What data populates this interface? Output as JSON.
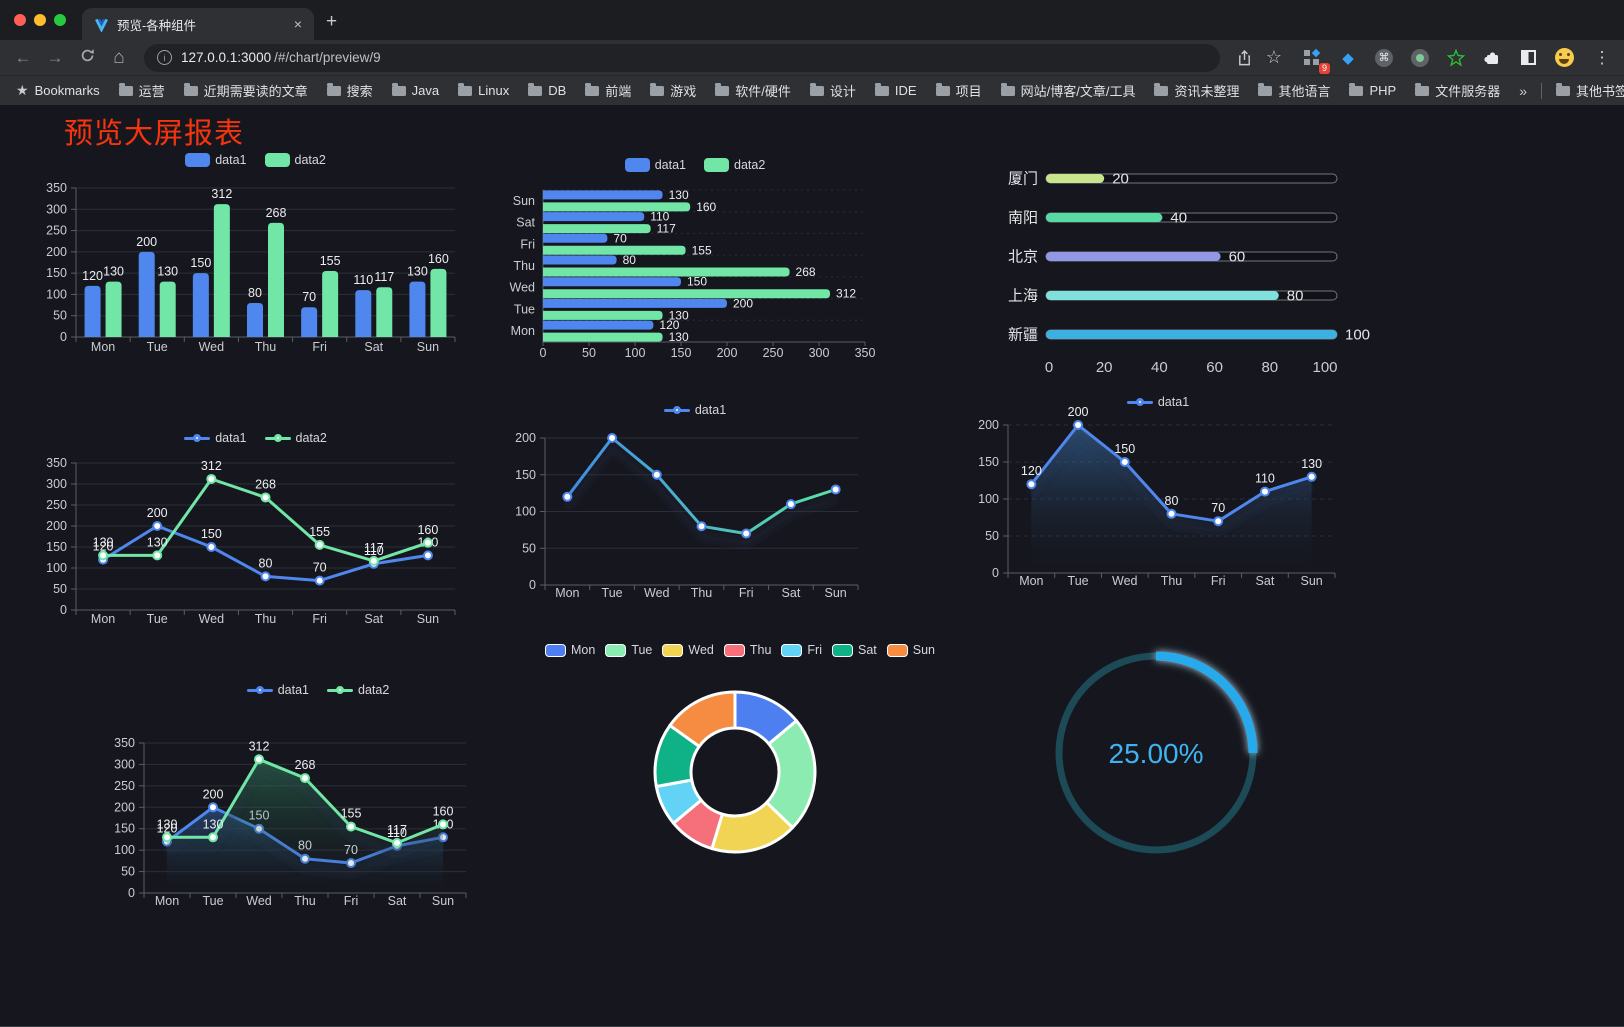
{
  "browser": {
    "tab": {
      "title": "预览-各种组件"
    },
    "url": {
      "host": "127.0.0.1:3000",
      "path": "/#/chart/preview/9"
    },
    "extension_badge": "9",
    "bookmarks_label": "Bookmarks",
    "bookmark_folders": [
      "运营",
      "近期需要读的文章",
      "搜索",
      "Java",
      "Linux",
      "DB",
      "前端",
      "游戏",
      "软件/硬件",
      "设计",
      "IDE",
      "项目",
      "网站/博客/文章/工具",
      "资讯未整理",
      "其他语言",
      "PHP",
      "文件服务器"
    ],
    "other_bookmarks": "其他书签"
  },
  "icons": {
    "close": "×",
    "new_tab": "+",
    "back": "←",
    "forward": "→",
    "home": "⌂",
    "info": "i",
    "star": "☆",
    "bookmarks_star": "★",
    "menu": "⋮",
    "command": "⌘",
    "gem": "◆",
    "overflow": "»"
  },
  "page": {
    "title": "预览大屏报表",
    "title_color": "#f6350f",
    "background": "#16171e"
  },
  "chart_data": [
    {
      "id": "c1",
      "type": "bar",
      "title": "",
      "categories": [
        "Mon",
        "Tue",
        "Wed",
        "Thu",
        "Fri",
        "Sat",
        "Sun"
      ],
      "series": [
        {
          "name": "data1",
          "color": "#4f87ee",
          "values": [
            120,
            200,
            150,
            80,
            70,
            110,
            130
          ]
        },
        {
          "name": "data2",
          "color": "#72e6a6",
          "values": [
            130,
            130,
            312,
            268,
            155,
            117,
            160
          ]
        }
      ],
      "ylim": [
        0,
        350
      ],
      "ytick_step": 50,
      "labels": true,
      "legend_position": "top"
    },
    {
      "id": "c2",
      "type": "bar-horizontal",
      "title": "",
      "categories": [
        "Mon",
        "Tue",
        "Wed",
        "Thu",
        "Fri",
        "Sat",
        "Sun"
      ],
      "series": [
        {
          "name": "data1",
          "color": "#4f87ee",
          "values": [
            120,
            200,
            150,
            80,
            70,
            110,
            130
          ]
        },
        {
          "name": "data2",
          "color": "#72e6a6",
          "values": [
            130,
            130,
            312,
            268,
            155,
            117,
            160
          ]
        }
      ],
      "xlim": [
        0,
        350
      ],
      "xtick_step": 50,
      "labels": true,
      "legend_position": "top"
    },
    {
      "id": "c3",
      "type": "progress",
      "rows": [
        {
          "label": "厦门",
          "value": 20,
          "color": "#c9e58c"
        },
        {
          "label": "南阳",
          "value": 40,
          "color": "#57dba2"
        },
        {
          "label": "北京",
          "value": 60,
          "color": "#9297e6"
        },
        {
          "label": "上海",
          "value": 80,
          "color": "#7fe0dd"
        },
        {
          "label": "新疆",
          "value": 100,
          "color": "#3cb1e0"
        }
      ],
      "max": 100,
      "xticks": [
        0,
        20,
        40,
        60,
        80,
        100
      ]
    },
    {
      "id": "c4",
      "type": "line",
      "categories": [
        "Mon",
        "Tue",
        "Wed",
        "Thu",
        "Fri",
        "Sat",
        "Sun"
      ],
      "series": [
        {
          "name": "data1",
          "color": "#4f87ee",
          "values": [
            120,
            200,
            150,
            80,
            70,
            110,
            130
          ]
        },
        {
          "name": "data2",
          "color": "#72e6a6",
          "values": [
            130,
            130,
            312,
            268,
            155,
            117,
            160
          ]
        }
      ],
      "ylim": [
        0,
        350
      ],
      "ytick_step": 50,
      "labels": true,
      "legend_position": "top"
    },
    {
      "id": "c5",
      "type": "line",
      "categories": [
        "Mon",
        "Tue",
        "Wed",
        "Thu",
        "Fri",
        "Sat",
        "Sun"
      ],
      "series": [
        {
          "name": "data1",
          "color": "#4f87ee",
          "gradient": [
            "#3f8ce6",
            "#5ae3a2"
          ],
          "values": [
            120,
            200,
            150,
            80,
            70,
            110,
            130
          ]
        }
      ],
      "ylim": [
        0,
        200
      ],
      "ytick_step": 50,
      "labels": false,
      "legend_position": "top"
    },
    {
      "id": "c6",
      "type": "line",
      "categories": [
        "Mon",
        "Tue",
        "Wed",
        "Thu",
        "Fri",
        "Sat",
        "Sun"
      ],
      "series": [
        {
          "name": "data1",
          "color": "#4f87ee",
          "area": [
            "rgba(64,130,200,0.55)",
            "rgba(21,30,45,0)"
          ],
          "values": [
            120,
            200,
            150,
            80,
            70,
            110,
            130
          ]
        }
      ],
      "ylim": [
        0,
        200
      ],
      "ytick_step": 50,
      "labels": true,
      "legend_position": "top"
    },
    {
      "id": "c7",
      "type": "line",
      "categories": [
        "Mon",
        "Tue",
        "Wed",
        "Thu",
        "Fri",
        "Sat",
        "Sun"
      ],
      "series": [
        {
          "name": "data1",
          "color": "#4f87ee",
          "area": [
            "rgba(52,108,180,0.55)",
            "rgba(21,30,45,0)"
          ],
          "values": [
            120,
            200,
            150,
            80,
            70,
            110,
            130
          ]
        },
        {
          "name": "data2",
          "color": "#72e6a6",
          "area": [
            "rgba(52,150,100,0.5)",
            "rgba(21,30,45,0)"
          ],
          "values": [
            130,
            130,
            312,
            268,
            155,
            117,
            160
          ]
        }
      ],
      "ylim": [
        0,
        350
      ],
      "ytick_step": 50,
      "labels": true,
      "legend_position": "top"
    },
    {
      "id": "c8",
      "type": "pie",
      "categories": [
        "Mon",
        "Tue",
        "Wed",
        "Thu",
        "Fri",
        "Sat",
        "Sun"
      ],
      "values": [
        120,
        200,
        150,
        80,
        70,
        110,
        130
      ],
      "colors": [
        "#4e7ff0",
        "#8cebb0",
        "#f2d455",
        "#f5707b",
        "#63d3f5",
        "#0fb286",
        "#f68c42"
      ],
      "inner_radius_ratio": 0.55,
      "legend_position": "top"
    },
    {
      "id": "c9",
      "type": "gauge",
      "percent": 25,
      "value_label": "25.00%",
      "color": "#27aaec",
      "track_color": "#1c4a57",
      "text_color": "#3fb3f2"
    }
  ]
}
